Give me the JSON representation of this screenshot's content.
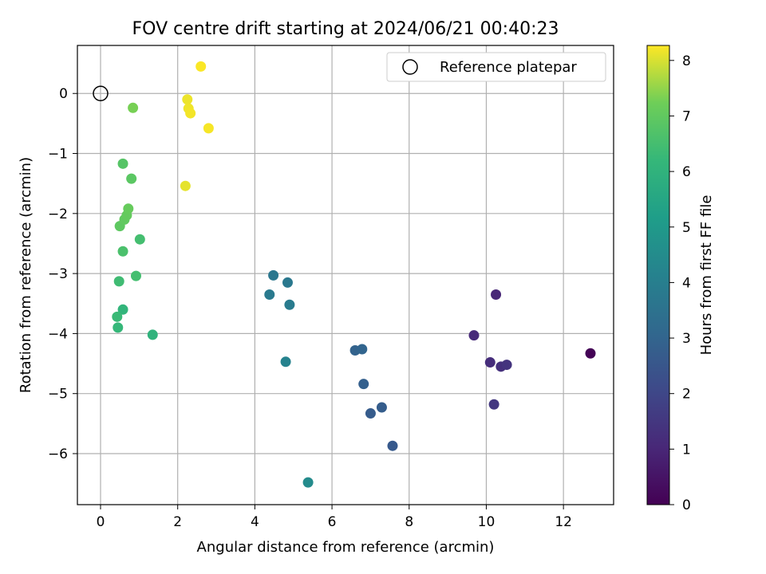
{
  "chart_data": {
    "type": "scatter",
    "title": "FOV centre drift starting at 2024/06/21 00:40:23",
    "xlabel": "Angular distance from reference (arcmin)",
    "ylabel": "Rotation from reference (arcmin)",
    "xlim": [
      -0.6,
      13.3
    ],
    "ylim": [
      -6.85,
      0.8
    ],
    "xticks": [
      0,
      2,
      4,
      6,
      8,
      10,
      12
    ],
    "yticks": [
      0,
      -1,
      -2,
      -3,
      -4,
      -5,
      -6
    ],
    "grid": true,
    "legend": {
      "position": "top-right",
      "entries": [
        "Reference platepar"
      ]
    },
    "reference_point": {
      "x": 0,
      "y": 0
    },
    "colorbar": {
      "label": "Hours from first FF file",
      "range": [
        0,
        8.27
      ],
      "ticks": [
        0,
        1,
        2,
        3,
        4,
        5,
        6,
        7,
        8
      ],
      "colormap": "viridis"
    },
    "points": [
      {
        "x": 12.7,
        "y": -4.33,
        "hours": 0.05
      },
      {
        "x": 10.25,
        "y": -3.35,
        "hours": 1.0
      },
      {
        "x": 9.68,
        "y": -4.03,
        "hours": 1.1
      },
      {
        "x": 10.1,
        "y": -4.48,
        "hours": 1.2
      },
      {
        "x": 10.38,
        "y": -4.55,
        "hours": 1.3
      },
      {
        "x": 10.53,
        "y": -4.52,
        "hours": 1.4
      },
      {
        "x": 10.2,
        "y": -5.18,
        "hours": 1.5
      },
      {
        "x": 7.57,
        "y": -5.87,
        "hours": 2.6
      },
      {
        "x": 7.0,
        "y": -5.33,
        "hours": 2.7
      },
      {
        "x": 7.29,
        "y": -5.23,
        "hours": 2.75
      },
      {
        "x": 6.82,
        "y": -4.84,
        "hours": 2.85
      },
      {
        "x": 6.6,
        "y": -4.28,
        "hours": 2.95
      },
      {
        "x": 6.78,
        "y": -4.26,
        "hours": 3.0
      },
      {
        "x": 4.48,
        "y": -3.03,
        "hours": 3.7
      },
      {
        "x": 4.85,
        "y": -3.15,
        "hours": 3.75
      },
      {
        "x": 4.38,
        "y": -3.35,
        "hours": 3.8
      },
      {
        "x": 4.9,
        "y": -3.52,
        "hours": 3.85
      },
      {
        "x": 4.8,
        "y": -4.47,
        "hours": 4.15
      },
      {
        "x": 5.38,
        "y": -6.48,
        "hours": 4.45
      },
      {
        "x": 1.35,
        "y": -4.02,
        "hours": 6.0
      },
      {
        "x": 0.58,
        "y": -3.6,
        "hours": 6.1
      },
      {
        "x": 0.45,
        "y": -3.9,
        "hours": 6.2
      },
      {
        "x": 0.43,
        "y": -3.72,
        "hours": 6.3
      },
      {
        "x": 0.48,
        "y": -3.13,
        "hours": 6.4
      },
      {
        "x": 0.92,
        "y": -3.04,
        "hours": 6.5
      },
      {
        "x": 0.58,
        "y": -2.63,
        "hours": 6.6
      },
      {
        "x": 1.02,
        "y": -2.43,
        "hours": 6.5
      },
      {
        "x": 0.58,
        "y": -1.17,
        "hours": 6.8
      },
      {
        "x": 0.8,
        "y": -1.42,
        "hours": 6.9
      },
      {
        "x": 0.5,
        "y": -2.21,
        "hours": 6.95
      },
      {
        "x": 0.62,
        "y": -2.1,
        "hours": 7.0
      },
      {
        "x": 0.68,
        "y": -2.03,
        "hours": 7.05
      },
      {
        "x": 0.72,
        "y": -1.92,
        "hours": 7.1
      },
      {
        "x": 0.84,
        "y": -0.24,
        "hours": 7.3
      },
      {
        "x": 2.2,
        "y": -1.54,
        "hours": 8.1
      },
      {
        "x": 2.25,
        "y": -0.1,
        "hours": 8.15
      },
      {
        "x": 2.28,
        "y": -0.25,
        "hours": 8.17
      },
      {
        "x": 2.33,
        "y": -0.33,
        "hours": 8.2
      },
      {
        "x": 2.8,
        "y": -0.58,
        "hours": 8.22
      },
      {
        "x": 2.6,
        "y": 0.45,
        "hours": 8.25
      }
    ]
  }
}
